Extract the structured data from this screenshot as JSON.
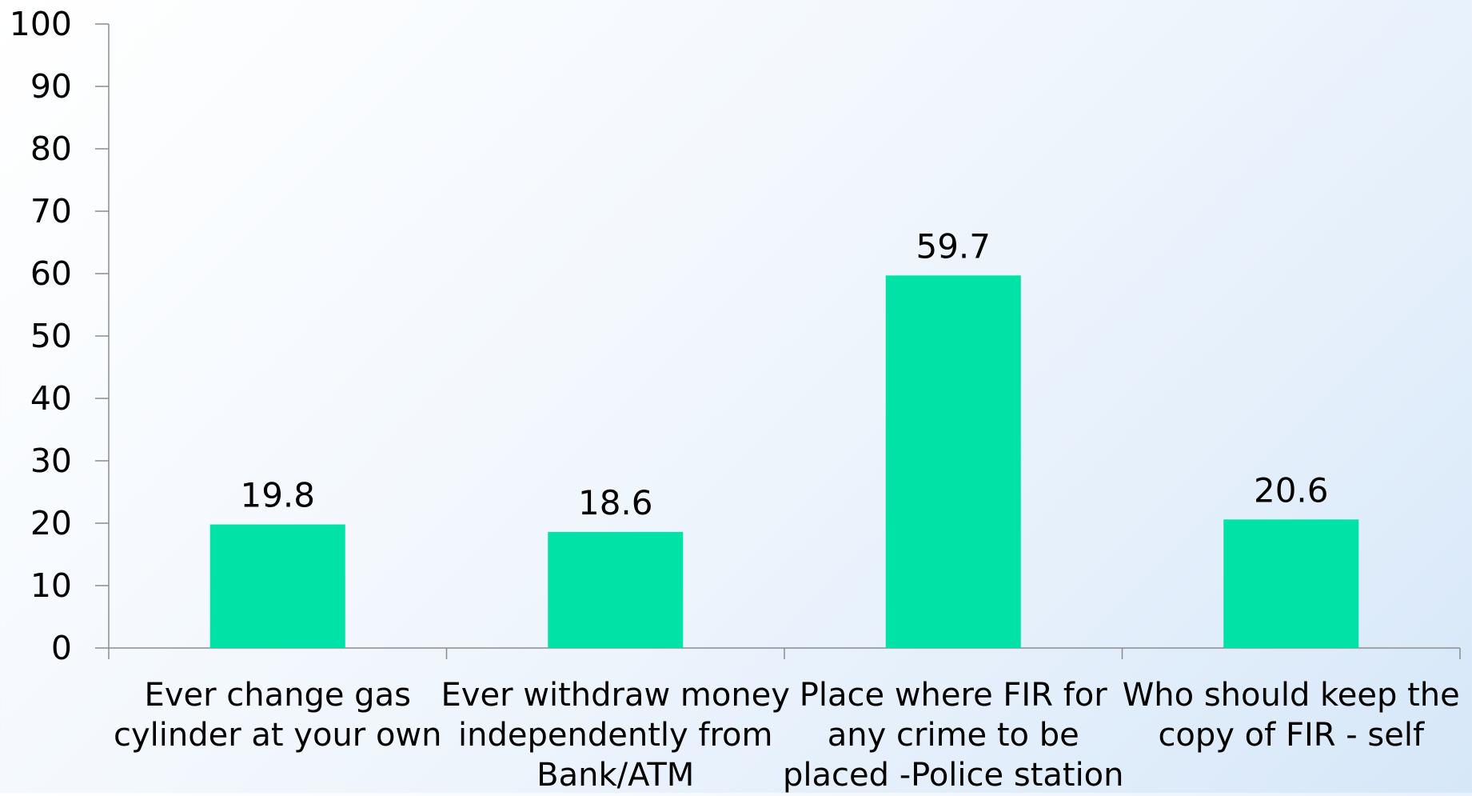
{
  "chart_data": {
    "type": "bar",
    "categories": [
      [
        "Ever change gas",
        "cylinder at your own"
      ],
      [
        "Ever withdraw money",
        "independently from",
        "Bank/ATM"
      ],
      [
        "Place where FIR for",
        "any crime to be",
        "placed -Police station"
      ],
      [
        "Who should keep the",
        "copy of FIR - self"
      ]
    ],
    "values": [
      19.8,
      18.6,
      59.7,
      20.6
    ],
    "data_labels": [
      "19.8",
      "18.6",
      "59.7",
      "20.6"
    ],
    "ylim": [
      0,
      100
    ],
    "yticks": [
      0,
      10,
      20,
      30,
      40,
      50,
      60,
      70,
      80,
      90,
      100
    ],
    "title": "",
    "xlabel": "",
    "ylabel": "",
    "grid": false,
    "legend": "none",
    "colors": {
      "bar": "#00E2A6",
      "axis": "#8c8c8c",
      "text": "#000000"
    }
  }
}
